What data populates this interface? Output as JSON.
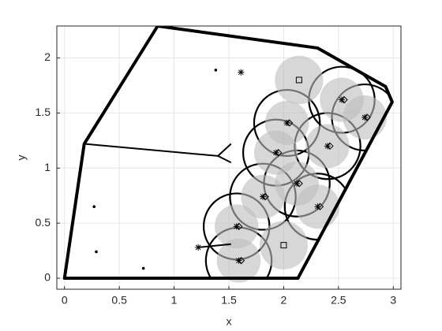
{
  "chart_data": {
    "type": "scatter",
    "xlabel": "x",
    "ylabel": "y",
    "xlim": [
      -0.07,
      3.07
    ],
    "ylim": [
      -0.1,
      2.29
    ],
    "xticks": [
      0,
      0.5,
      1,
      1.5,
      2,
      2.5,
      3
    ],
    "yticks": [
      0,
      0.5,
      1,
      1.5,
      2
    ],
    "grid": true,
    "boundary": {
      "color": "#000000",
      "x": [
        0,
        0.18,
        0.85,
        2.31,
        2.93,
        2.99,
        2.13
      ],
      "y": [
        0,
        1.22,
        2.29,
        2.09,
        1.74,
        1.6,
        0
      ]
    },
    "edges": [
      {
        "x": [
          0.18,
          1.4,
          1.52
        ],
        "y": [
          1.22,
          1.11,
          1.22
        ]
      },
      {
        "x": [
          1.4,
          1.52
        ],
        "y": [
          1.11,
          1.05
        ]
      },
      {
        "x": [
          1.22,
          1.52
        ],
        "y": [
          0.28,
          0.31
        ]
      }
    ],
    "series": [
      {
        "marker": "diamond",
        "color": "#000000",
        "coverage_radius": 0.2,
        "cell_radius": 0.3,
        "coverage_color": "#bdbdbd",
        "x": [
          2.53,
          2.74,
          2.03,
          2.4,
          1.93,
          2.12,
          2.31,
          1.81,
          1.57,
          1.59
        ],
        "y": [
          1.62,
          1.46,
          1.41,
          1.2,
          1.14,
          0.86,
          0.65,
          0.74,
          0.47,
          0.16
        ]
      },
      {
        "marker": "square",
        "color": "#000000",
        "coverage_radius": 0.22,
        "coverage_color": "#bdbdbd",
        "x": [
          2.14,
          2.0
        ],
        "y": [
          1.8,
          0.3
        ]
      },
      {
        "marker": "asterisk",
        "color": "#000000",
        "x": [
          1.61,
          1.22
        ],
        "y": [
          1.87,
          0.28
        ]
      },
      {
        "marker": "dot",
        "color": "#000000",
        "x": [
          1.38,
          0.27,
          0.29,
          0.72
        ],
        "y": [
          1.89,
          0.65,
          0.24,
          0.09
        ]
      }
    ]
  }
}
